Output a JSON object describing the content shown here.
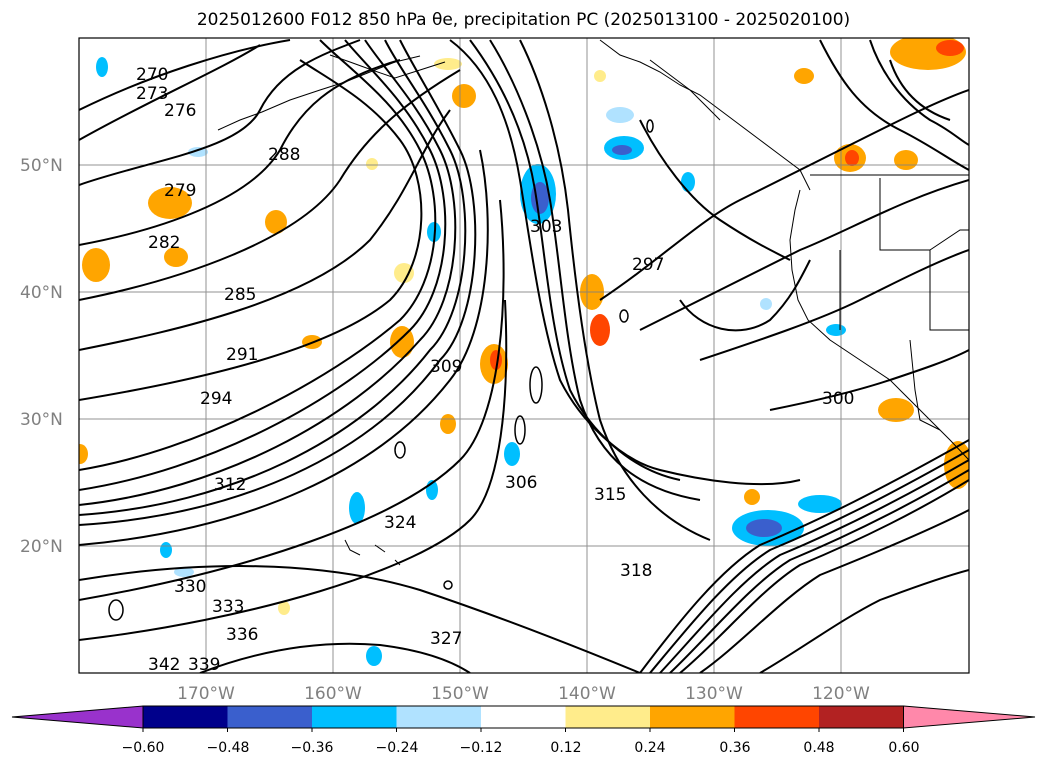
{
  "title": "2025012600 F012 850 hPa θe, precipitation PC (2025013100 - 2025020100)",
  "map": {
    "lat_labels": [
      "50°N",
      "40°N",
      "30°N",
      "20°N"
    ],
    "lon_labels": [
      "170°W",
      "160°W",
      "150°W",
      "140°W",
      "130°W",
      "120°W"
    ],
    "contour_labels": [
      "270",
      "273",
      "276",
      "279",
      "282",
      "285",
      "288",
      "291",
      "294",
      "297",
      "300",
      "303",
      "306",
      "309",
      "312",
      "315",
      "318",
      "324",
      "327",
      "330",
      "333",
      "336",
      "339",
      "342"
    ]
  },
  "colorbar": {
    "ticks": [
      "−0.60",
      "−0.48",
      "−0.36",
      "−0.24",
      "−0.12",
      "0.12",
      "0.24",
      "0.36",
      "0.48",
      "0.60"
    ],
    "colors": [
      "#9932cc",
      "#00008b",
      "#3a5fcd",
      "#00bfff",
      "#b0e2ff",
      "#ffffff",
      "#ffec8b",
      "#ffa500",
      "#ff4500",
      "#b22222",
      "#ff88aa"
    ]
  }
}
